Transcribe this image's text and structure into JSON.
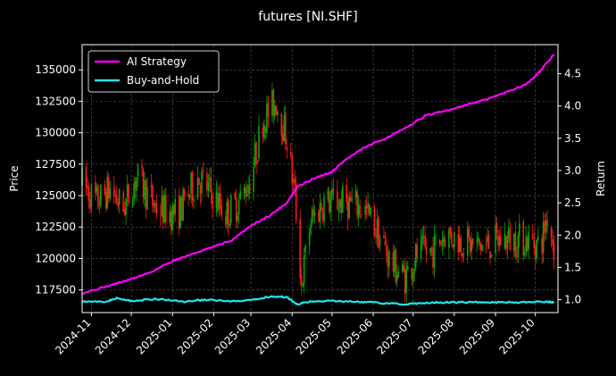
{
  "chart_data": {
    "type": "candlestick+line",
    "title": "futures [NI.SHF]",
    "ylabel_left": "Price",
    "ylabel_right": "Return",
    "ylim_left": [
      115700,
      137000
    ],
    "ylim_right": [
      0.8,
      4.95
    ],
    "yticks_left": [
      117500,
      120000,
      122500,
      125000,
      127500,
      130000,
      132500,
      135000
    ],
    "yticks_left_labels": [
      "117500",
      "120000",
      "122500",
      "125000",
      "127500",
      "130000",
      "132500",
      "135000"
    ],
    "yticks_right": [
      1.0,
      1.5,
      2.0,
      2.5,
      3.0,
      3.5,
      4.0,
      4.5
    ],
    "yticks_right_labels": [
      "1.0",
      "1.5",
      "2.0",
      "2.5",
      "3.0",
      "3.5",
      "4.0",
      "4.5"
    ],
    "x_range": [
      "2024-10-25",
      "2025-10-18"
    ],
    "xticks": [
      "2024-11-01",
      "2024-12-01",
      "2025-01-01",
      "2025-02-01",
      "2025-03-01",
      "2025-04-01",
      "2025-05-01",
      "2025-06-01",
      "2025-07-01",
      "2025-08-01",
      "2025-09-01",
      "2025-10-01"
    ],
    "xticks_labels": [
      "2024-11",
      "2024-12",
      "2025-01",
      "2025-02",
      "2025-03",
      "2025-04",
      "2025-05",
      "2025-06",
      "2025-07",
      "2025-08",
      "2025-09",
      "2025-10"
    ],
    "grid": true,
    "legend_position": "top-left",
    "colors": {
      "background": "#000000",
      "grid": "#555555",
      "up": "#00aa00",
      "down": "#ff1a1a",
      "ai": "#ff00ff",
      "bh": "#22e5e5"
    },
    "price_anchors": [
      [
        "2024-10-25",
        126000
      ],
      [
        "2024-11-05",
        124500
      ],
      [
        "2024-11-15",
        125500
      ],
      [
        "2024-11-25",
        124000
      ],
      [
        "2024-12-05",
        126500
      ],
      [
        "2024-12-20",
        124000
      ],
      [
        "2025-01-05",
        123500
      ],
      [
        "2025-01-20",
        126500
      ],
      [
        "2025-02-01",
        125000
      ],
      [
        "2025-02-10",
        123500
      ],
      [
        "2025-02-20",
        124500
      ],
      [
        "2025-03-01",
        126500
      ],
      [
        "2025-03-10",
        131000
      ],
      [
        "2025-03-20",
        132500
      ],
      [
        "2025-03-28",
        129500
      ],
      [
        "2025-04-03",
        125000
      ],
      [
        "2025-04-08",
        118000
      ],
      [
        "2025-04-15",
        123000
      ],
      [
        "2025-04-25",
        124500
      ],
      [
        "2025-05-10",
        124500
      ],
      [
        "2025-05-25",
        124000
      ],
      [
        "2025-06-05",
        122000
      ],
      [
        "2025-06-15",
        119500
      ],
      [
        "2025-06-25",
        118500
      ],
      [
        "2025-07-05",
        120500
      ],
      [
        "2025-07-15",
        120500
      ],
      [
        "2025-07-25",
        122000
      ],
      [
        "2025-08-05",
        121500
      ],
      [
        "2025-08-15",
        121000
      ],
      [
        "2025-08-25",
        121000
      ],
      [
        "2025-09-05",
        121500
      ],
      [
        "2025-09-15",
        121500
      ],
      [
        "2025-09-25",
        121500
      ],
      [
        "2025-10-05",
        121000
      ],
      [
        "2025-10-10",
        123500
      ],
      [
        "2025-10-15",
        121000
      ]
    ],
    "series": [
      {
        "name": "AI Strategy",
        "type": "line",
        "axis": "right",
        "points": [
          [
            "2024-10-25",
            1.1
          ],
          [
            "2024-11-15",
            1.22
          ],
          [
            "2024-12-01",
            1.32
          ],
          [
            "2024-12-15",
            1.42
          ],
          [
            "2025-01-01",
            1.6
          ],
          [
            "2025-01-15",
            1.7
          ],
          [
            "2025-02-01",
            1.82
          ],
          [
            "2025-02-15",
            1.92
          ],
          [
            "2025-03-01",
            2.15
          ],
          [
            "2025-03-15",
            2.3
          ],
          [
            "2025-03-28",
            2.5
          ],
          [
            "2025-04-05",
            2.75
          ],
          [
            "2025-04-20",
            2.9
          ],
          [
            "2025-05-01",
            2.98
          ],
          [
            "2025-05-10",
            3.15
          ],
          [
            "2025-05-25",
            3.35
          ],
          [
            "2025-06-10",
            3.5
          ],
          [
            "2025-06-25",
            3.65
          ],
          [
            "2025-07-10",
            3.85
          ],
          [
            "2025-07-25",
            3.92
          ],
          [
            "2025-08-10",
            4.02
          ],
          [
            "2025-08-25",
            4.1
          ],
          [
            "2025-09-10",
            4.22
          ],
          [
            "2025-09-25",
            4.35
          ],
          [
            "2025-10-05",
            4.55
          ],
          [
            "2025-10-15",
            4.8
          ]
        ]
      },
      {
        "name": "Buy-and-Hold",
        "type": "line",
        "axis": "right",
        "points": [
          [
            "2024-10-25",
            0.98
          ],
          [
            "2024-11-10",
            0.96
          ],
          [
            "2024-11-20",
            1.02
          ],
          [
            "2024-12-01",
            0.98
          ],
          [
            "2024-12-20",
            1.01
          ],
          [
            "2025-01-10",
            0.97
          ],
          [
            "2025-01-25",
            1.0
          ],
          [
            "2025-02-15",
            0.97
          ],
          [
            "2025-03-01",
            0.99
          ],
          [
            "2025-03-15",
            1.05
          ],
          [
            "2025-03-28",
            1.04
          ],
          [
            "2025-04-05",
            0.93
          ],
          [
            "2025-04-15",
            0.97
          ],
          [
            "2025-05-01",
            0.98
          ],
          [
            "2025-05-20",
            0.97
          ],
          [
            "2025-06-05",
            0.95
          ],
          [
            "2025-06-25",
            0.93
          ],
          [
            "2025-07-10",
            0.95
          ],
          [
            "2025-07-25",
            0.96
          ],
          [
            "2025-08-10",
            0.96
          ],
          [
            "2025-08-25",
            0.96
          ],
          [
            "2025-09-10",
            0.96
          ],
          [
            "2025-09-25",
            0.96
          ],
          [
            "2025-10-10",
            0.97
          ],
          [
            "2025-10-15",
            0.95
          ]
        ]
      }
    ]
  }
}
